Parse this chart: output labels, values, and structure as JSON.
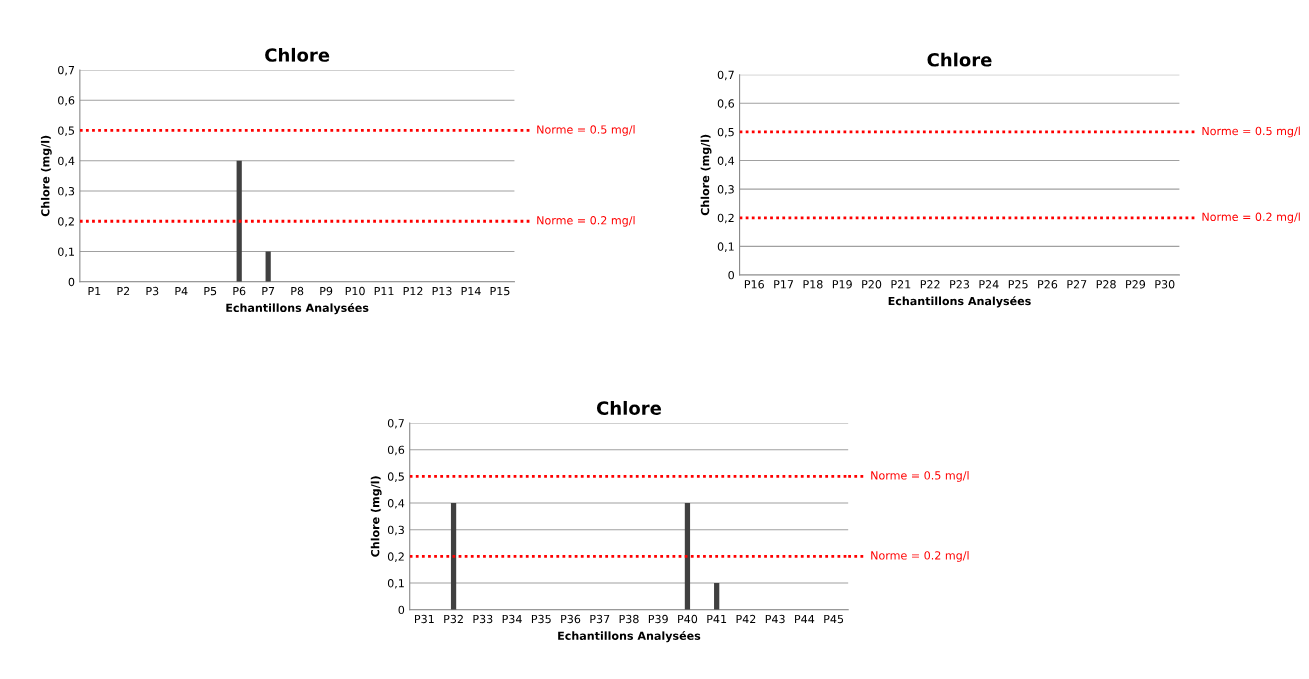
{
  "chart_data": [
    {
      "type": "bar",
      "title": "Chlore",
      "xlabel": "Echantillons Analysées",
      "ylabel": "Chlore (mg/l)",
      "categories": [
        "P1",
        "P2",
        "P3",
        "P4",
        "P5",
        "P6",
        "P7",
        "P8",
        "P9",
        "P10",
        "P11",
        "P12",
        "P13",
        "P14",
        "P15"
      ],
      "values": [
        0,
        0,
        0,
        0,
        0,
        0.4,
        0.1,
        0,
        0,
        0,
        0,
        0,
        0,
        0,
        0
      ],
      "color": "#404040",
      "ylim": [
        0,
        0.7
      ],
      "yticks": [
        0,
        {
          "value": 0.1,
          "label": "0,1"
        },
        {
          "value": 0.2,
          "label": "0,2"
        },
        {
          "value": 0.3,
          "label": "0,3"
        },
        {
          "value": 0.4,
          "label": "0,4"
        },
        {
          "value": 0.5,
          "label": "0,5"
        },
        {
          "value": 0.6,
          "label": "0,6"
        },
        {
          "value": 0.7,
          "label": "0,7"
        }
      ],
      "grid": "y",
      "ref_lines": [
        {
          "axis": "y",
          "value": 0.5,
          "label": "Norme = 0.5 mg/l",
          "color": "#ff0000",
          "line_style": "dotted"
        },
        {
          "axis": "y",
          "value": 0.2,
          "label": "Norme = 0.2 mg/l",
          "color": "#ff0000",
          "line_style": "dotted"
        }
      ]
    },
    {
      "type": "bar",
      "title": "Chlore",
      "xlabel": "Echantillons Analysées",
      "ylabel": "Chlore (mg/l)",
      "categories": [
        "P16",
        "P17",
        "P18",
        "P19",
        "P20",
        "P21",
        "P22",
        "P23",
        "P24",
        "P25",
        "P26",
        "P27",
        "P28",
        "P29",
        "P30"
      ],
      "values": [
        0,
        0,
        0,
        0,
        0,
        0,
        0,
        0,
        0,
        0,
        0,
        0,
        0,
        0,
        0
      ],
      "color": "#404040",
      "ylim": [
        0,
        0.7
      ],
      "yticks": [
        0,
        {
          "value": 0.1,
          "label": "0,1"
        },
        {
          "value": 0.2,
          "label": "0,2"
        },
        {
          "value": 0.3,
          "label": "0,3"
        },
        {
          "value": 0.4,
          "label": "0,4"
        },
        {
          "value": 0.5,
          "label": "0,5"
        },
        {
          "value": 0.6,
          "label": "0,6"
        },
        {
          "value": 0.7,
          "label": "0,7"
        }
      ],
      "grid": "y",
      "ref_lines": [
        {
          "axis": "y",
          "value": 0.5,
          "label": "Norme = 0.5 mg/l",
          "color": "#ff0000",
          "line_style": "dotted"
        },
        {
          "axis": "y",
          "value": 0.2,
          "label": "Norme = 0.2 mg/l",
          "color": "#ff0000",
          "line_style": "dotted"
        }
      ]
    },
    {
      "type": "bar",
      "title": "Chlore",
      "xlabel": "Echantillons Analysées",
      "ylabel": "Chlore (mg/l)",
      "categories": [
        "P31",
        "P32",
        "P33",
        "P34",
        "P35",
        "P36",
        "P37",
        "P38",
        "P39",
        "P40",
        "P41",
        "P42",
        "P43",
        "P44",
        "P45"
      ],
      "values": [
        0,
        0.4,
        0,
        0,
        0,
        0,
        0,
        0,
        0,
        0.4,
        0.1,
        0,
        0,
        0,
        0
      ],
      "color": "#404040",
      "ylim": [
        0,
        0.7
      ],
      "yticks": [
        0,
        {
          "value": 0.1,
          "label": "0,1"
        },
        {
          "value": 0.2,
          "label": "0,2"
        },
        {
          "value": 0.3,
          "label": "0,3"
        },
        {
          "value": 0.4,
          "label": "0,4"
        },
        {
          "value": 0.5,
          "label": "0,5"
        },
        {
          "value": 0.6,
          "label": "0,6"
        },
        {
          "value": 0.7,
          "label": "0,7"
        }
      ],
      "grid": "y",
      "ref_lines": [
        {
          "axis": "y",
          "value": 0.5,
          "label": "Norme = 0.5 mg/l",
          "color": "#ff0000",
          "line_style": "dotted"
        },
        {
          "axis": "y",
          "value": 0.2,
          "label": "Norme = 0.2 mg/l",
          "color": "#ff0000",
          "line_style": "dotted"
        }
      ]
    }
  ]
}
